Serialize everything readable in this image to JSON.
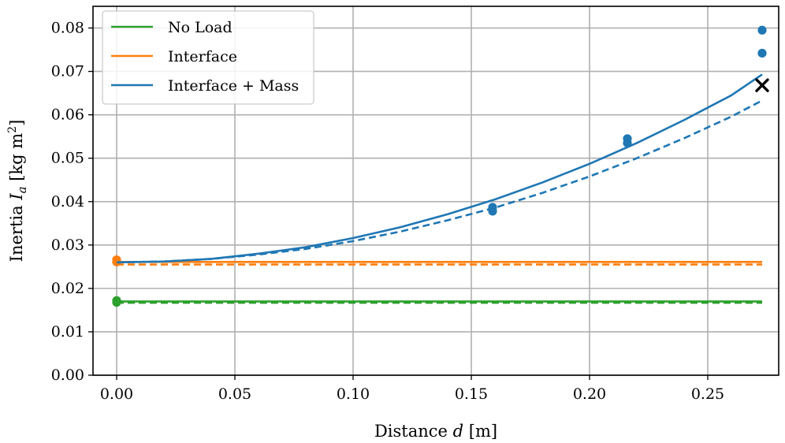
{
  "chart_data": {
    "type": "line",
    "xlabel": "Distance d [m]",
    "ylabel": "Inertia I_a [kg m²]",
    "xlabel_parts": {
      "prefix": "Distance ",
      "var": "d",
      "suffix": " [m]"
    },
    "ylabel_parts": {
      "prefix": "Inertia ",
      "var": "I",
      "sub": "a",
      "unit": " [kg m",
      "sup": "2",
      "close": "]"
    },
    "xlim": [
      -0.01,
      0.28
    ],
    "ylim": [
      0.0,
      0.085
    ],
    "xticks": [
      0.0,
      0.05,
      0.1,
      0.15,
      0.2,
      0.25
    ],
    "xtick_labels": [
      "0.00",
      "0.05",
      "0.10",
      "0.15",
      "0.20",
      "0.25"
    ],
    "yticks": [
      0.0,
      0.01,
      0.02,
      0.03,
      0.04,
      0.05,
      0.06,
      0.07,
      0.08
    ],
    "ytick_labels": [
      "0.00",
      "0.01",
      "0.02",
      "0.03",
      "0.04",
      "0.05",
      "0.06",
      "0.07",
      "0.08"
    ],
    "grid": true,
    "legend_position": "top-left",
    "series": [
      {
        "name": "No Load",
        "color": "#2ca02c",
        "solid": {
          "x": [
            0.0,
            0.273
          ],
          "y": [
            0.017,
            0.017
          ]
        },
        "dashed": {
          "x": [
            0.0,
            0.273
          ],
          "y": [
            0.0167,
            0.0167
          ]
        },
        "points": {
          "x": [
            0.0,
            0.0
          ],
          "y": [
            0.0172,
            0.0168
          ]
        }
      },
      {
        "name": "Interface",
        "color": "#ff7f0e",
        "solid": {
          "x": [
            0.0,
            0.273
          ],
          "y": [
            0.0261,
            0.0261
          ]
        },
        "dashed": {
          "x": [
            0.0,
            0.273
          ],
          "y": [
            0.0255,
            0.0255
          ]
        },
        "points": {
          "x": [
            0.0,
            0.0
          ],
          "y": [
            0.0266,
            0.0261
          ]
        }
      },
      {
        "name": "Interface + Mass",
        "color": "#1f77b4",
        "solid": {
          "x": [
            0.0,
            0.02,
            0.04,
            0.06,
            0.08,
            0.1,
            0.12,
            0.14,
            0.16,
            0.18,
            0.2,
            0.22,
            0.24,
            0.26,
            0.273
          ],
          "y": [
            0.026,
            0.0262,
            0.0268,
            0.028,
            0.0295,
            0.0316,
            0.0341,
            0.0371,
            0.0405,
            0.0444,
            0.0487,
            0.0535,
            0.0588,
            0.0645,
            0.0693
          ]
        },
        "dashed": {
          "x": [
            0.0,
            0.02,
            0.04,
            0.06,
            0.08,
            0.1,
            0.12,
            0.14,
            0.16,
            0.18,
            0.2,
            0.22,
            0.24,
            0.26,
            0.273
          ],
          "y": [
            0.026,
            0.0262,
            0.0268,
            0.0278,
            0.0291,
            0.0309,
            0.0331,
            0.0357,
            0.0386,
            0.042,
            0.0458,
            0.05,
            0.0546,
            0.0596,
            0.0633
          ]
        },
        "points": {
          "x": [
            0.159,
            0.159,
            0.216,
            0.216,
            0.273,
            0.273
          ],
          "y": [
            0.0387,
            0.0378,
            0.0545,
            0.0535,
            0.0795,
            0.0742
          ]
        }
      }
    ],
    "markers": [
      {
        "type": "x",
        "x": 0.273,
        "y": 0.0668,
        "color": "#000000"
      }
    ]
  }
}
